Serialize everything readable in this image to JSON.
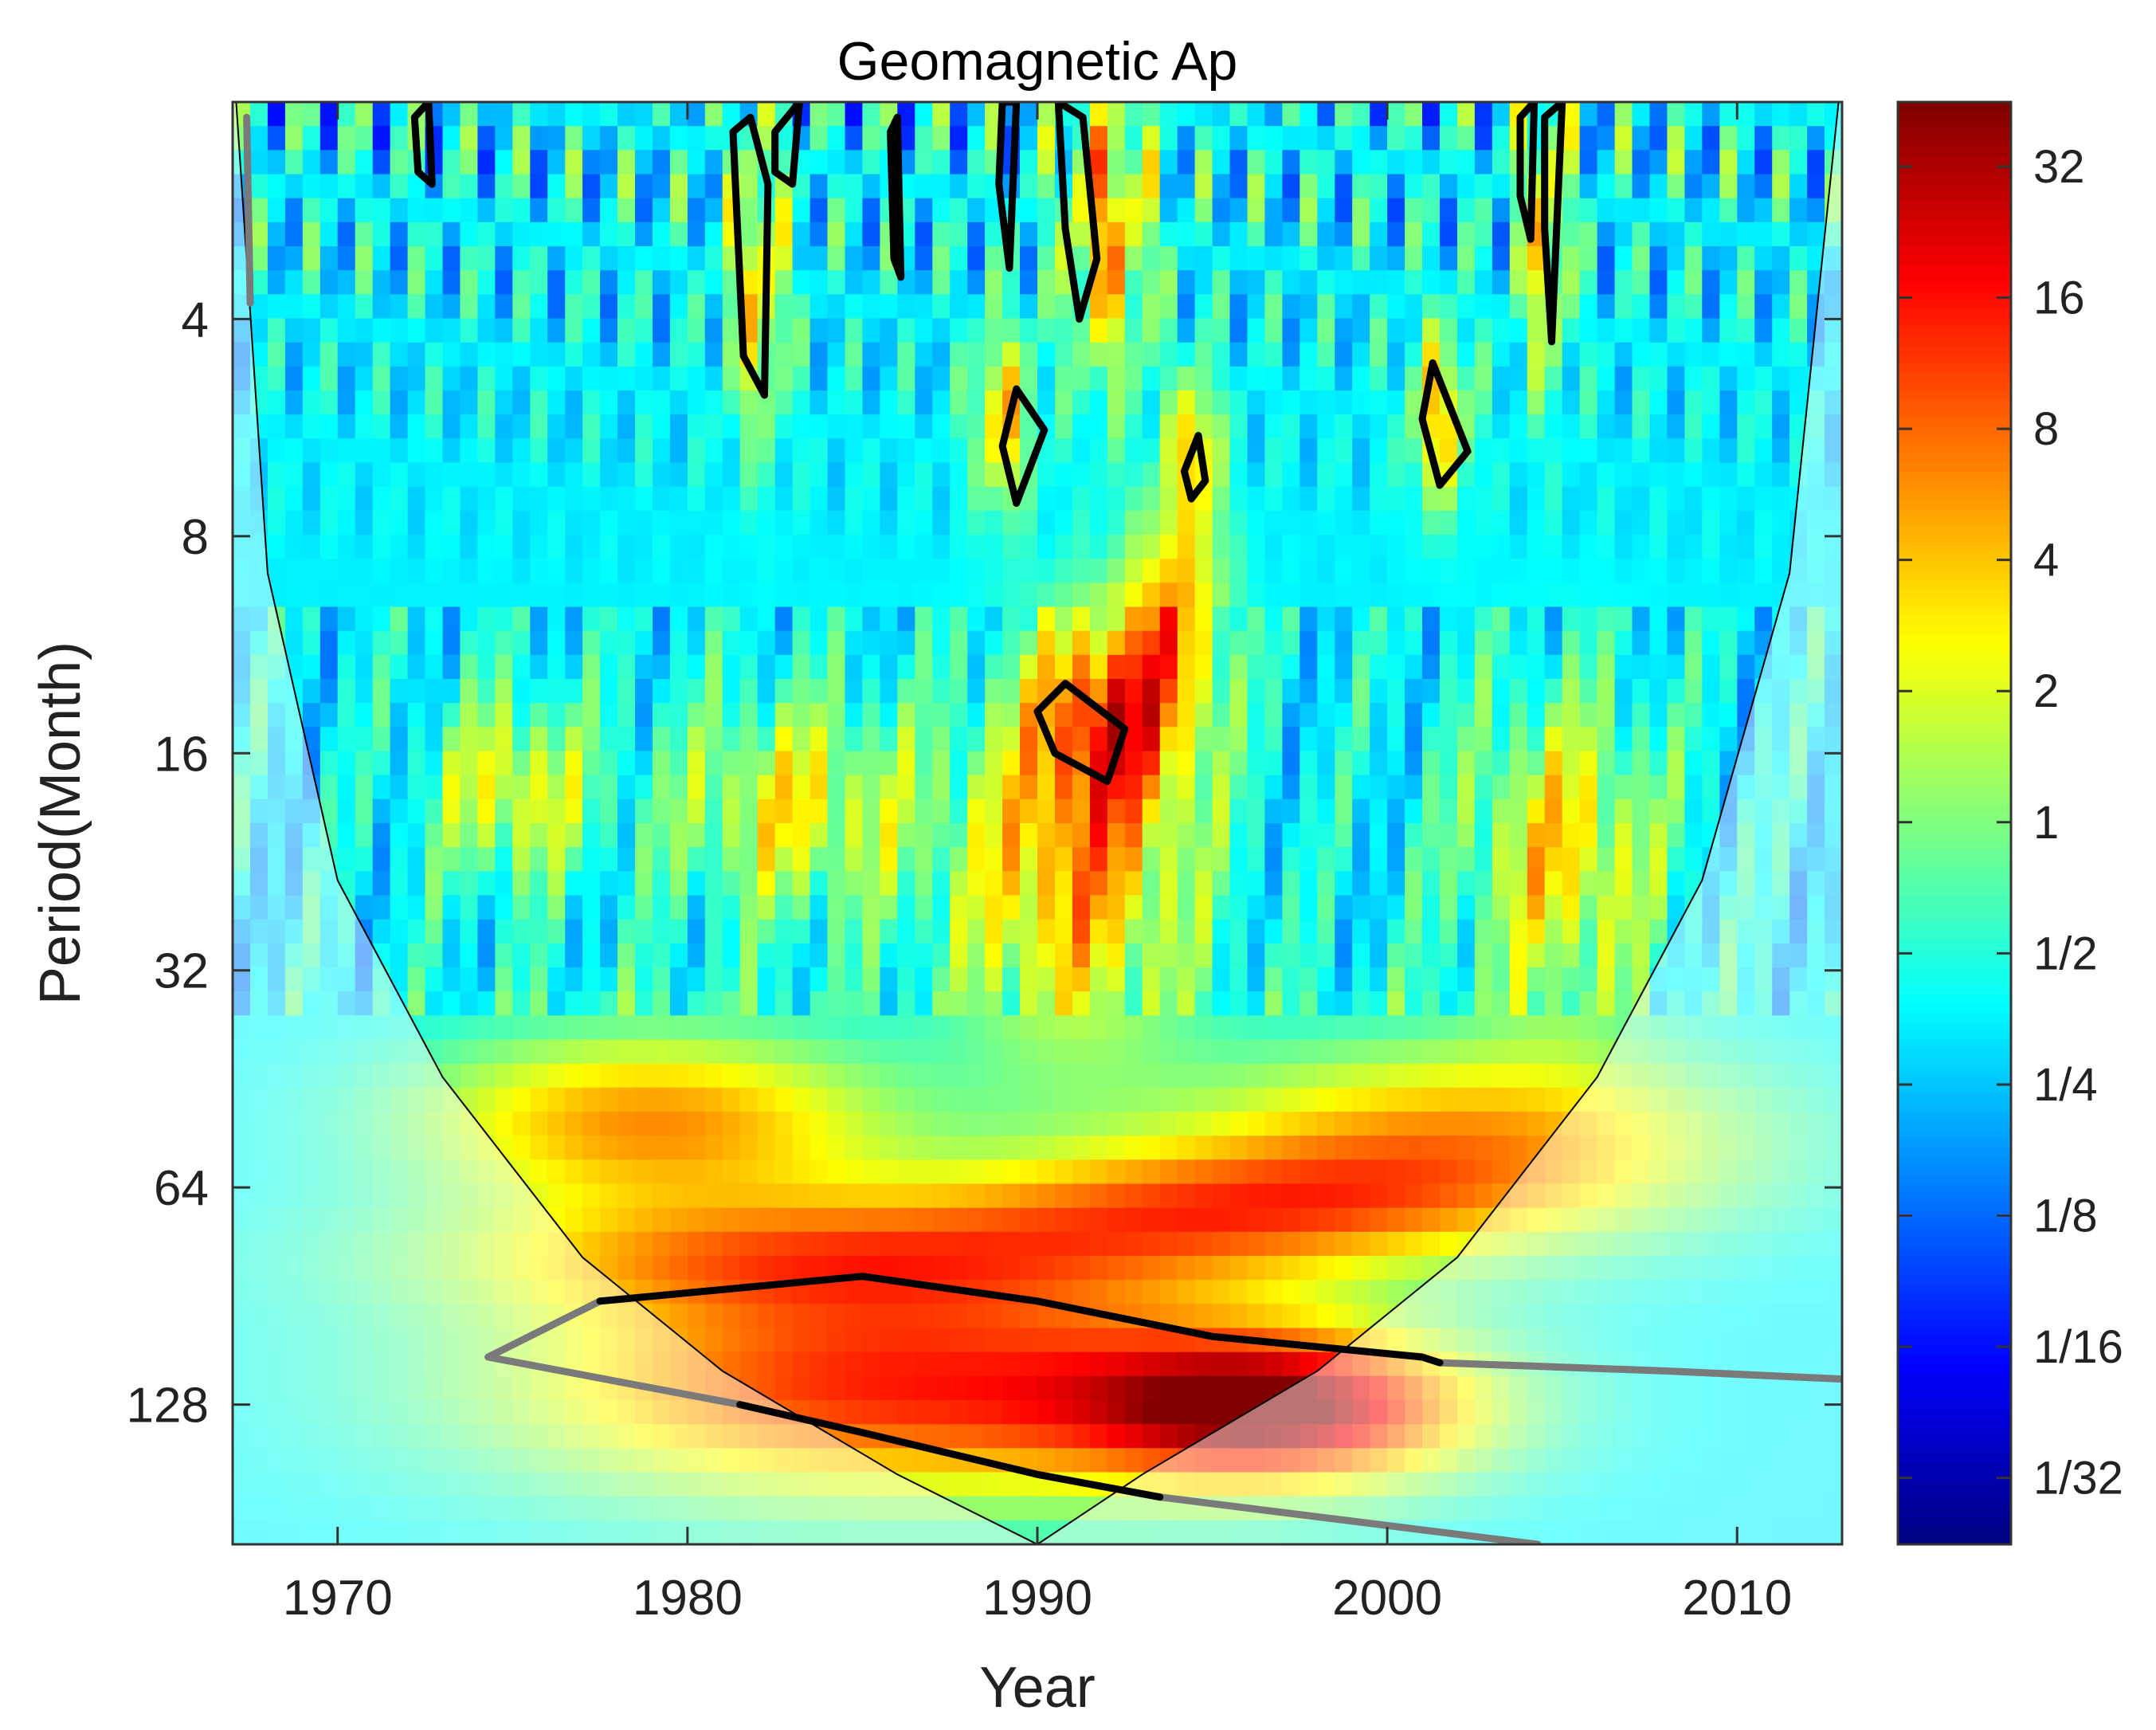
{
  "chart_data": {
    "type": "heatmap",
    "title": "Geomagnetic Ap",
    "xlabel": "Year",
    "ylabel": "Period(Month)",
    "xlim": [
      1967,
      2013
    ],
    "ylim": [
      2,
      200
    ],
    "y_scale": "log2",
    "x_ticks": [
      1970,
      1980,
      1990,
      2000,
      2010
    ],
    "x_tick_labels": [
      "1970",
      "1980",
      "1990",
      "2000",
      "2010"
    ],
    "y_ticks": [
      4,
      8,
      16,
      32,
      64,
      128
    ],
    "y_tick_labels": [
      "4",
      "8",
      "16",
      "32",
      "64",
      "128"
    ],
    "colorbar": {
      "colormap": "jet",
      "scale": "log2",
      "range": [
        0.022,
        45
      ],
      "ticks": [
        32,
        16,
        8,
        4,
        2,
        1,
        0.5,
        0.25,
        0.125,
        0.0625,
        0.03125
      ],
      "tick_labels": [
        "32",
        "16",
        "8",
        "4",
        "2",
        "1",
        "1/2",
        "1/4",
        "1/8",
        "1/16",
        "1/32"
      ]
    },
    "cone_of_influence": {
      "color": "#ffffff",
      "opacity": 0.45,
      "points": [
        [
          1967.1,
          2
        ],
        [
          1968,
          9
        ],
        [
          1970,
          24
        ],
        [
          1973,
          45
        ],
        [
          1977,
          80
        ],
        [
          1981,
          115
        ],
        [
          1986,
          160
        ],
        [
          1990,
          200
        ],
        [
          1993,
          160
        ],
        [
          1998,
          115
        ],
        [
          2002,
          80
        ],
        [
          2006,
          45
        ],
        [
          2009,
          24
        ],
        [
          2011.5,
          9
        ],
        [
          2012.9,
          2
        ]
      ]
    },
    "blobs": [
      {
        "x": 1986,
        "p": 120,
        "sx": 8,
        "sy": 0.38,
        "v": 20
      },
      {
        "x": 1997,
        "p": 130,
        "sx": 4,
        "sy": 0.25,
        "v": 28
      },
      {
        "x": 1979,
        "p": 52,
        "sx": 5,
        "sy": 0.3,
        "v": 8
      },
      {
        "x": 2002,
        "p": 55,
        "sx": 6,
        "sy": 0.32,
        "v": 7
      },
      {
        "x": 1991,
        "p": 24,
        "sx": 2.5,
        "sy": 0.55,
        "v": 6
      },
      {
        "x": 1992,
        "p": 14,
        "sx": 1.6,
        "sy": 0.35,
        "v": 10
      },
      {
        "x": 1975,
        "p": 18,
        "sx": 1.6,
        "sy": 0.3,
        "v": 3
      },
      {
        "x": 2005,
        "p": 22,
        "sx": 2,
        "sy": 0.5,
        "v": 4
      },
      {
        "x": 1983,
        "p": 19,
        "sx": 2.5,
        "sy": 0.35,
        "v": 3
      },
      {
        "x": 1984,
        "p": 80,
        "sx": 8,
        "sy": 0.2,
        "v": 4
      },
      {
        "x": 1995,
        "p": 68,
        "sx": 6,
        "sy": 0.2,
        "v": 4
      },
      {
        "x": 1992,
        "p": 3,
        "sx": 0.9,
        "sy": 0.5,
        "v": 6
      },
      {
        "x": 1989,
        "p": 5.5,
        "sx": 0.6,
        "sy": 0.3,
        "v": 5
      },
      {
        "x": 2001.5,
        "p": 5.5,
        "sx": 0.6,
        "sy": 0.3,
        "v": 5
      },
      {
        "x": 1982,
        "p": 3.6,
        "sx": 0.6,
        "sy": 0.5,
        "v": 4
      },
      {
        "x": 2004.5,
        "p": 3,
        "sx": 0.5,
        "sy": 0.5,
        "v": 4
      },
      {
        "x": 1994.5,
        "p": 6,
        "sx": 0.5,
        "sy": 0.25,
        "v": 4
      },
      {
        "x": 1994,
        "p": 10,
        "sx": 1,
        "sy": 0.4,
        "v": 4
      }
    ],
    "contours_black": [
      [
        [
          1977.5,
          92
        ],
        [
          1985,
          85
        ],
        [
          1990,
          92
        ],
        [
          1995,
          103
        ],
        [
          2001,
          110
        ],
        [
          2001.5,
          112
        ]
      ],
      [
        [
          1981.5,
          128
        ],
        [
          1985,
          140
        ],
        [
          1990,
          160
        ],
        [
          1993.5,
          172
        ]
      ],
      [
        [
          1990,
          14
        ],
        [
          1990.8,
          12.8
        ],
        [
          1992.5,
          14.8
        ],
        [
          1992,
          17.5
        ],
        [
          1990.5,
          16
        ],
        [
          1990,
          14
        ]
      ],
      [
        [
          1989,
          6
        ],
        [
          1989.4,
          5.0
        ],
        [
          1990.2,
          5.7
        ],
        [
          1989.4,
          7.2
        ],
        [
          1989,
          6
        ]
      ],
      [
        [
          2001,
          5.5
        ],
        [
          2001.3,
          4.6
        ],
        [
          2002.3,
          6.1
        ],
        [
          2001.5,
          6.8
        ],
        [
          2001,
          5.5
        ]
      ],
      [
        [
          1994.2,
          6.5
        ],
        [
          1994.6,
          5.8
        ],
        [
          1994.8,
          6.7
        ],
        [
          1994.4,
          7.1
        ],
        [
          1994.2,
          6.5
        ]
      ],
      [
        [
          1981.3,
          2.2
        ],
        [
          1981.6,
          4.5
        ],
        [
          1982.2,
          5.1
        ],
        [
          1982.3,
          2.6
        ],
        [
          1981.8,
          2.1
        ],
        [
          1981.3,
          2.2
        ]
      ],
      [
        [
          1982.5,
          2.2
        ],
        [
          1983.2,
          2.0
        ],
        [
          1983,
          2.6
        ],
        [
          1982.5,
          2.5
        ],
        [
          1982.5,
          2.2
        ]
      ],
      [
        [
          1990.6,
          2.0
        ],
        [
          1991.3,
          2.1
        ],
        [
          1991.7,
          3.3
        ],
        [
          1991.2,
          4.0
        ],
        [
          1990.8,
          3.0
        ],
        [
          1990.6,
          2.0
        ]
      ],
      [
        [
          1989,
          2.0
        ],
        [
          1989.4,
          2.0
        ],
        [
          1989.2,
          3.4
        ],
        [
          1988.9,
          2.6
        ],
        [
          1989,
          2.0
        ]
      ],
      [
        [
          1985.8,
          2.2
        ],
        [
          1986,
          2.1
        ],
        [
          1986.1,
          3.5
        ],
        [
          1985.9,
          3.3
        ],
        [
          1985.8,
          2.2
        ]
      ],
      [
        [
          1972.2,
          2.1
        ],
        [
          1972.6,
          2.0
        ],
        [
          1972.7,
          2.6
        ],
        [
          1972.3,
          2.5
        ],
        [
          1972.2,
          2.1
        ]
      ],
      [
        [
          2003.8,
          2.1
        ],
        [
          2004.2,
          2.0
        ],
        [
          2004.1,
          3.1
        ],
        [
          2003.8,
          2.7
        ],
        [
          2003.8,
          2.1
        ]
      ],
      [
        [
          2004.5,
          2.1
        ],
        [
          2005,
          2.0
        ],
        [
          2004.7,
          4.3
        ],
        [
          2004.5,
          3.0
        ],
        [
          2004.5,
          2.1
        ]
      ]
    ],
    "contours_gray": [
      [
        [
          1977.5,
          92
        ],
        [
          1974.3,
          110
        ],
        [
          1981.5,
          128
        ]
      ],
      [
        [
          1993.5,
          172
        ],
        [
          2004.3,
          200
        ]
      ],
      [
        [
          2001.5,
          112
        ],
        [
          2008,
          115
        ],
        [
          2013,
          118
        ]
      ],
      [
        [
          1967.4,
          2.1
        ],
        [
          1967.5,
          3.8
        ]
      ]
    ]
  }
}
